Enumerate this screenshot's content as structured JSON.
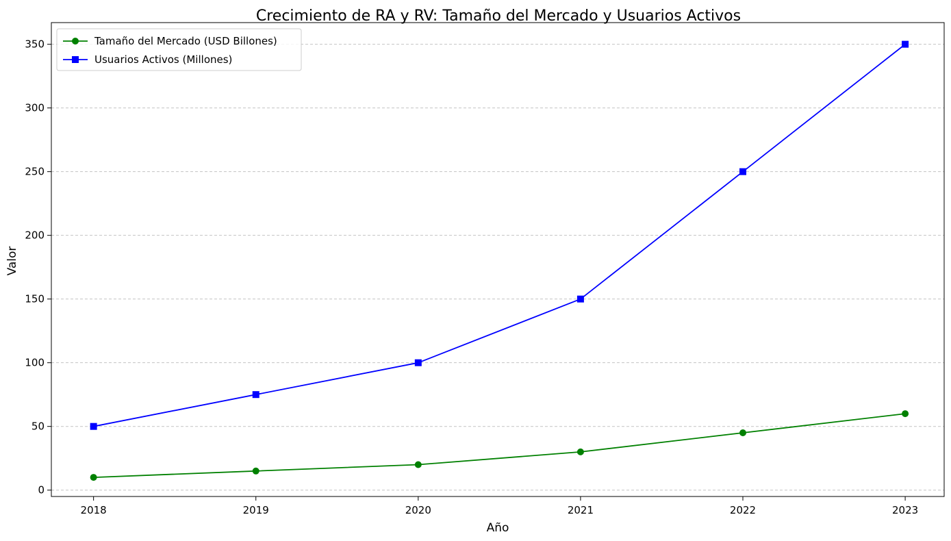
{
  "chart_data": {
    "type": "line",
    "title": "Crecimiento de RA y RV: Tamaño del Mercado y Usuarios Activos",
    "xlabel": "Año",
    "ylabel": "Valor",
    "x": [
      2018,
      2019,
      2020,
      2021,
      2022,
      2023
    ],
    "x_tick_labels": [
      "2018",
      "2019",
      "2020",
      "2021",
      "2022",
      "2023"
    ],
    "y_ticks": [
      0,
      50,
      100,
      150,
      200,
      250,
      300,
      350
    ],
    "y_tick_labels": [
      "0",
      "50",
      "100",
      "150",
      "200",
      "250",
      "300",
      "350"
    ],
    "xlim": [
      2017.74,
      2023.24
    ],
    "ylim": [
      -5,
      367
    ],
    "grid": "horizontal dashed",
    "legend_position": "top-left",
    "series": [
      {
        "name": "Tamaño del Mercado (USD Billones)",
        "values": [
          10,
          15,
          20,
          30,
          45,
          60
        ],
        "color": "#008000",
        "marker": "circle"
      },
      {
        "name": "Usuarios Activos (Millones)",
        "values": [
          50,
          75,
          100,
          150,
          250,
          350
        ],
        "color": "#0000ff",
        "marker": "square"
      }
    ]
  }
}
